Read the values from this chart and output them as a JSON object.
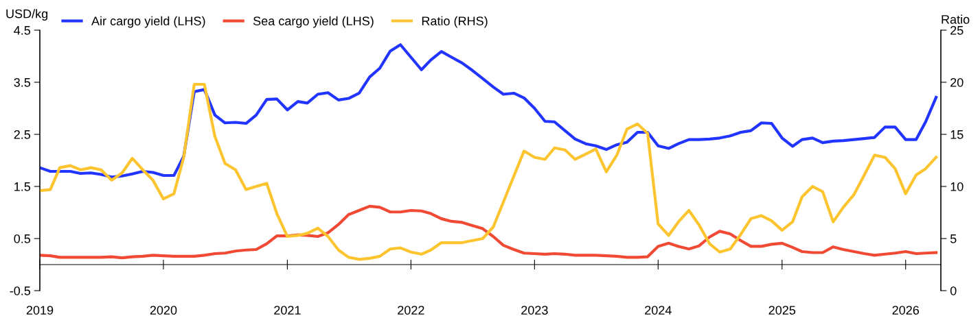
{
  "chart_data": {
    "type": "line",
    "ylabel": "USD/kg",
    "y2label": "Ratio",
    "x": [
      "2019-01",
      "2019-02",
      "2019-03",
      "2019-04",
      "2019-05",
      "2019-06",
      "2019-07",
      "2019-08",
      "2019-09",
      "2019-10",
      "2019-11",
      "2019-12",
      "2020-01",
      "2020-02",
      "2020-03",
      "2020-04",
      "2020-05",
      "2020-06",
      "2020-07",
      "2020-08",
      "2020-09",
      "2020-10",
      "2020-11",
      "2020-12",
      "2021-01",
      "2021-02",
      "2021-03",
      "2021-04",
      "2021-05",
      "2021-06",
      "2021-07",
      "2021-08",
      "2021-09",
      "2021-10",
      "2021-11",
      "2021-12",
      "2022-01",
      "2022-02",
      "2022-03",
      "2022-04",
      "2022-05",
      "2022-06",
      "2022-07",
      "2022-08",
      "2022-09",
      "2022-10",
      "2022-11",
      "2022-12",
      "2023-01",
      "2023-02",
      "2023-03",
      "2023-04",
      "2023-05",
      "2023-06",
      "2023-07",
      "2023-08",
      "2023-09",
      "2023-10",
      "2023-11",
      "2023-12",
      "2024-01",
      "2024-02",
      "2024-03",
      "2024-04",
      "2024-05",
      "2024-06",
      "2024-07",
      "2024-08",
      "2024-09",
      "2024-10",
      "2024-11",
      "2024-12",
      "2025-01",
      "2025-02",
      "2025-03",
      "2025-04",
      "2025-05",
      "2025-06",
      "2025-07",
      "2025-08",
      "2025-09",
      "2025-10",
      "2025-11",
      "2025-12",
      "2026-01",
      "2026-02",
      "2026-03",
      "2026-04"
    ],
    "series": [
      {
        "name": "Air cargo yield (LHS)",
        "color": "#2234ff",
        "values": [
          1.86,
          1.79,
          1.79,
          1.79,
          1.75,
          1.76,
          1.73,
          1.68,
          1.7,
          1.74,
          1.79,
          1.77,
          1.71,
          1.71,
          2.08,
          3.32,
          3.36,
          2.87,
          2.72,
          2.73,
          2.71,
          2.87,
          3.17,
          3.18,
          2.97,
          3.13,
          3.1,
          3.27,
          3.3,
          3.16,
          3.19,
          3.29,
          3.6,
          3.77,
          4.1,
          4.22,
          3.98,
          3.74,
          3.93,
          4.09,
          3.98,
          3.87,
          3.73,
          3.57,
          3.41,
          3.27,
          3.29,
          3.2,
          3.0,
          2.75,
          2.74,
          2.57,
          2.41,
          2.32,
          2.28,
          2.21,
          2.3,
          2.35,
          2.54,
          2.54,
          2.28,
          2.23,
          2.32,
          2.4,
          2.4,
          2.41,
          2.43,
          2.47,
          2.54,
          2.57,
          2.72,
          2.71,
          2.43,
          2.27,
          2.4,
          2.43,
          2.34,
          2.37,
          2.38,
          2.4,
          2.42,
          2.44,
          2.64,
          2.64,
          2.4,
          2.4,
          2.74,
          3.21
        ]
      },
      {
        "name": "Sea cargo yield (LHS)",
        "color": "#f04a35",
        "values": [
          0.18,
          0.17,
          0.14,
          0.14,
          0.14,
          0.14,
          0.14,
          0.15,
          0.13,
          0.15,
          0.16,
          0.18,
          0.17,
          0.16,
          0.16,
          0.16,
          0.18,
          0.21,
          0.22,
          0.26,
          0.28,
          0.29,
          0.4,
          0.55,
          0.55,
          0.57,
          0.56,
          0.54,
          0.61,
          0.77,
          0.96,
          1.04,
          1.12,
          1.1,
          1.01,
          1.01,
          1.04,
          1.03,
          0.98,
          0.88,
          0.83,
          0.81,
          0.75,
          0.69,
          0.54,
          0.37,
          0.29,
          0.22,
          0.21,
          0.2,
          0.21,
          0.2,
          0.18,
          0.18,
          0.18,
          0.17,
          0.16,
          0.14,
          0.14,
          0.15,
          0.35,
          0.41,
          0.35,
          0.3,
          0.36,
          0.53,
          0.64,
          0.59,
          0.46,
          0.35,
          0.35,
          0.39,
          0.41,
          0.33,
          0.25,
          0.23,
          0.23,
          0.34,
          0.29,
          0.25,
          0.21,
          0.18,
          0.2,
          0.22,
          0.25,
          0.21,
          0.22,
          0.23
        ]
      },
      {
        "name": "Ratio (RHS)",
        "color": "#fcc530",
        "axis": "y2",
        "values": [
          9.6,
          9.7,
          11.8,
          12.0,
          11.6,
          11.8,
          11.6,
          10.6,
          11.3,
          12.7,
          11.6,
          10.6,
          8.8,
          9.3,
          12.8,
          19.8,
          19.8,
          14.8,
          12.2,
          11.6,
          9.7,
          10.0,
          10.3,
          7.4,
          5.2,
          5.3,
          5.5,
          6.0,
          5.2,
          3.9,
          3.2,
          3.0,
          3.1,
          3.3,
          4.0,
          4.1,
          3.7,
          3.5,
          3.9,
          4.6,
          4.6,
          4.6,
          4.8,
          5.0,
          6.1,
          8.5,
          11.0,
          13.4,
          12.8,
          12.6,
          13.7,
          13.5,
          12.6,
          13.1,
          13.6,
          11.4,
          13.0,
          15.5,
          16.0,
          15.1,
          6.4,
          5.3,
          6.6,
          7.7,
          6.3,
          4.5,
          3.7,
          4.0,
          5.4,
          6.9,
          7.2,
          6.7,
          5.8,
          6.6,
          9.0,
          10.0,
          9.5,
          6.6,
          8.0,
          9.2,
          11.1,
          13.0,
          12.8,
          11.7,
          9.3,
          11.1,
          11.7,
          12.8
        ]
      }
    ],
    "xlim": [
      "2019-01-01",
      "2026-04-15"
    ],
    "xticks": [
      "2019",
      "2020",
      "2021",
      "2022",
      "2023",
      "2024",
      "2025",
      "2026"
    ],
    "ylim": [
      -0.5,
      4.5
    ],
    "yticks": [
      -0.5,
      0.5,
      1.5,
      2.5,
      3.5,
      4.5
    ],
    "y2lim": [
      0,
      25
    ],
    "y2ticks": [
      0,
      5,
      10,
      15,
      20,
      25
    ],
    "legend": "top",
    "grid": false,
    "marker": "none",
    "line_style": "solid"
  }
}
